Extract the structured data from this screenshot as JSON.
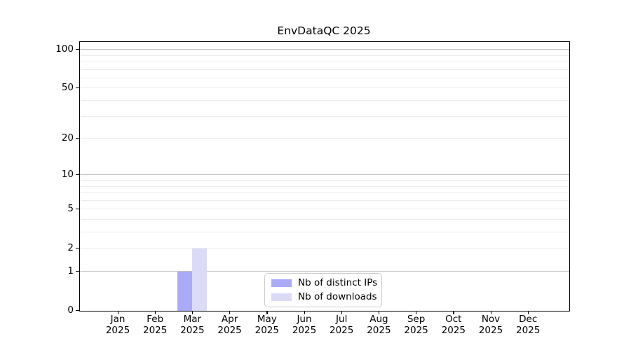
{
  "figure": {
    "title": "EnvDataQC 2025",
    "background": "#ffffff"
  },
  "chart_data": {
    "type": "bar",
    "title": "EnvDataQC 2025",
    "categories": [
      "Jan 2025",
      "Feb 2025",
      "Mar 2025",
      "Apr 2025",
      "May 2025",
      "Jun 2025",
      "Jul 2025",
      "Aug 2025",
      "Sep 2025",
      "Oct 2025",
      "Nov 2025",
      "Dec 2025"
    ],
    "series": [
      {
        "name": "Nb of distinct IPs",
        "color": "#aaaaf6",
        "values": [
          0,
          0,
          1,
          0,
          0,
          0,
          0,
          0,
          0,
          0,
          0,
          0
        ]
      },
      {
        "name": "Nb of downloads",
        "color": "#dbdbf7",
        "values": [
          0,
          0,
          2,
          0,
          0,
          0,
          0,
          0,
          0,
          0,
          0,
          0
        ]
      }
    ],
    "xlabel": "",
    "ylabel": "",
    "yscale": "log1p",
    "ylim": [
      0,
      115
    ],
    "yticks": [
      0,
      1,
      2,
      5,
      10,
      20,
      50,
      100
    ],
    "major_gridlines": [
      1,
      10,
      100
    ],
    "minor_gridlines": [
      2,
      3,
      4,
      5,
      6,
      7,
      8,
      9,
      20,
      30,
      40,
      50,
      60,
      70,
      80,
      90
    ],
    "grid": true,
    "legend_position": "lower center",
    "colors": {
      "spine": "#000000",
      "major_grid": "#c2c2c2",
      "minor_grid": "#ececec"
    }
  }
}
